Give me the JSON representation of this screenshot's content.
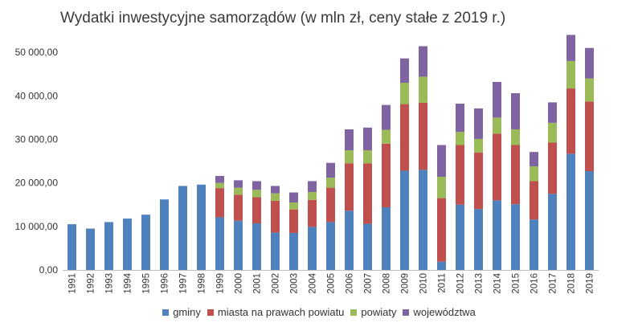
{
  "chart_data": {
    "type": "bar",
    "stacked": true,
    "title": "Wydatki inwestycyjne samorządów (w mln zł, ceny stałe z 2019 r.)",
    "xlabel": "",
    "ylabel": "",
    "ylim": [
      0,
      55000
    ],
    "yticks": [
      0,
      10000,
      20000,
      30000,
      40000,
      50000
    ],
    "ytick_labels": [
      "0,00",
      "10 000,00",
      "20 000,00",
      "30 000,00",
      "40 000,00",
      "50 000,00"
    ],
    "grid": false,
    "legend_position": "bottom",
    "categories": [
      "1991",
      "1992",
      "1993",
      "1994",
      "1995",
      "1996",
      "1997",
      "1998",
      "1999",
      "2000",
      "2001",
      "2002",
      "2003",
      "2004",
      "2005",
      "2006",
      "2007",
      "2008",
      "2009",
      "2010",
      "2011",
      "2012",
      "2013",
      "2014",
      "2015",
      "2016",
      "2017",
      "2018",
      "2019"
    ],
    "series": [
      {
        "name": "gminy",
        "color": "#4f81bd",
        "values": [
          10500,
          9500,
          11000,
          11800,
          12700,
          16200,
          19300,
          19600,
          12100,
          11300,
          10700,
          8600,
          8500,
          9900,
          11000,
          13600,
          10600,
          14400,
          22800,
          23000,
          1900,
          15000,
          14000,
          16000,
          15100,
          11600,
          17500,
          26700,
          22700
        ]
      },
      {
        "name": "miasta na prawach powiatu",
        "color": "#c0504d",
        "values": [
          0,
          0,
          0,
          0,
          0,
          0,
          0,
          0,
          6700,
          6000,
          6000,
          7300,
          5400,
          6200,
          7900,
          10900,
          13900,
          14600,
          15300,
          15400,
          14600,
          13700,
          13000,
          15300,
          13600,
          8800,
          11800,
          15000,
          16000
        ]
      },
      {
        "name": "powiaty",
        "color": "#9bbb59",
        "values": [
          0,
          0,
          0,
          0,
          0,
          0,
          0,
          0,
          1200,
          1600,
          1700,
          1700,
          1600,
          1800,
          2300,
          3000,
          3000,
          3200,
          4900,
          6000,
          4900,
          3000,
          3100,
          3700,
          3600,
          3400,
          4500,
          6300,
          5300
        ]
      },
      {
        "name": "województwa",
        "color": "#8064a2",
        "values": [
          0,
          0,
          0,
          0,
          0,
          0,
          0,
          0,
          1600,
          1700,
          2000,
          1700,
          2300,
          2500,
          3400,
          4800,
          5200,
          5700,
          5600,
          7000,
          7300,
          6500,
          7000,
          8200,
          8300,
          3300,
          4700,
          6000,
          7000
        ]
      }
    ]
  }
}
